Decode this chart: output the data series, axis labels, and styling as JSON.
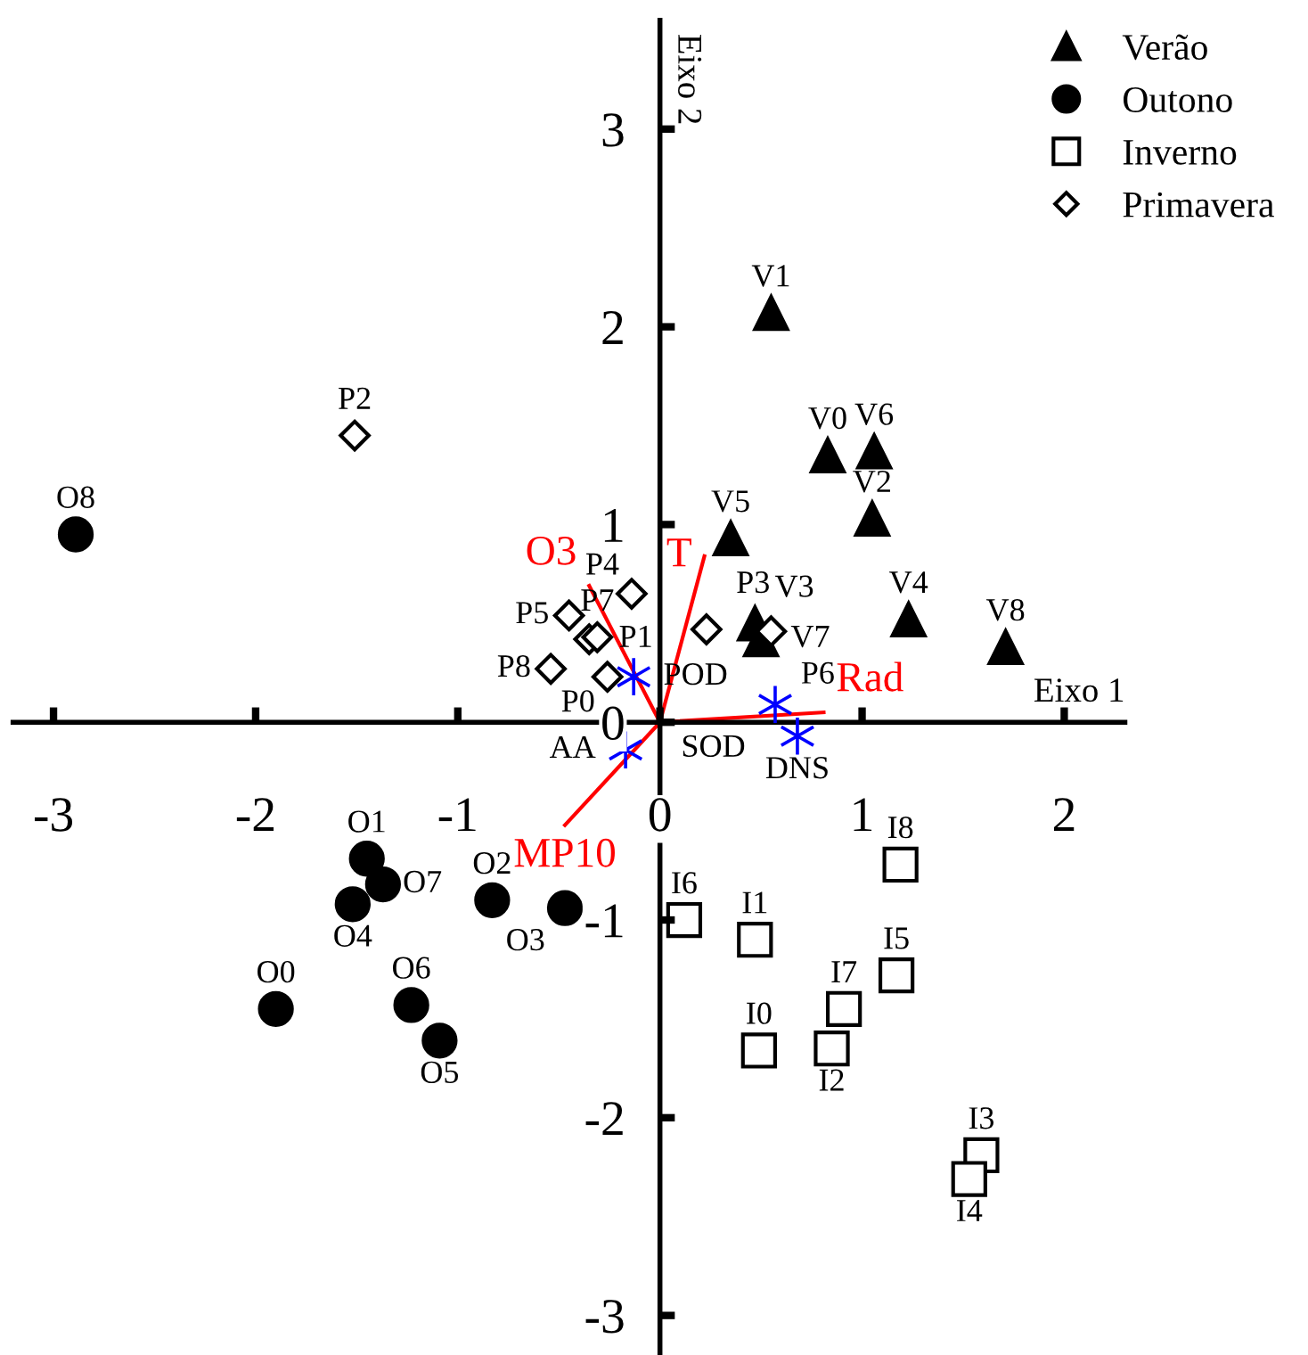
{
  "chart_data": {
    "type": "scatter",
    "xlabel": "Eixo 1",
    "ylabel": "Eixo 2",
    "xlim": [
      -3.2,
      2.3
    ],
    "ylim": [
      -3.2,
      3.55
    ],
    "xticks": [
      -3,
      -2,
      -1,
      0,
      1,
      2
    ],
    "yticks": [
      -3,
      -2,
      -1,
      0,
      1,
      2,
      3
    ],
    "grid": false,
    "legend": "top right",
    "series": [
      {
        "name": "Verão",
        "color": "#000000",
        "marker": "triangle",
        "x": [
          0.83,
          0.55,
          1.05,
          0.47,
          1.23,
          0.35,
          1.06,
          0.5,
          1.71
        ],
        "values": [
          1.35,
          2.07,
          1.03,
          0.5,
          0.52,
          0.93,
          1.37,
          0.42,
          0.38
        ],
        "value_labels": [
          "V0",
          "V1",
          "V2",
          "V3",
          "V4",
          "V5",
          "V6",
          "V7",
          "V8"
        ]
      },
      {
        "name": "Outono",
        "color": "#000000",
        "marker": "circle",
        "x": [
          -1.9,
          -1.45,
          -0.83,
          -0.47,
          -1.52,
          -1.09,
          -1.23,
          -1.37,
          -2.89
        ],
        "values": [
          -1.45,
          -0.69,
          -0.9,
          -0.94,
          -0.92,
          -1.61,
          -1.43,
          -0.82,
          0.95
        ],
        "value_labels": [
          "O0",
          "O1",
          "O2",
          "O3",
          "O4",
          "O5",
          "O6",
          "O7",
          "O8"
        ]
      },
      {
        "name": "Inverno",
        "color": "#000000",
        "marker": "square",
        "x": [
          0.49,
          0.47,
          0.85,
          1.59,
          1.53,
          1.17,
          0.12,
          0.91,
          1.19
        ],
        "values": [
          -1.66,
          -1.1,
          -1.65,
          -2.19,
          -2.31,
          -1.28,
          -1.0,
          -1.45,
          -0.72
        ],
        "value_labels": [
          "I0",
          "I1",
          "I2",
          "I3",
          "I4",
          "I5",
          "I6",
          "I7",
          "I8"
        ]
      },
      {
        "name": "Primavera",
        "color": "#000000",
        "marker": "diamond",
        "x": [
          -0.26,
          -0.35,
          -1.51,
          0.23,
          -0.14,
          -0.45,
          0.55,
          -0.31,
          -0.54
        ],
        "values": [
          0.23,
          0.42,
          1.45,
          0.47,
          0.65,
          0.54,
          0.46,
          0.43,
          0.27
        ],
        "value_labels": [
          "P0",
          "P1",
          "P2",
          "P3",
          "P4",
          "P5",
          "P6",
          "P7",
          "P8"
        ]
      },
      {
        "color": "#0000ff",
        "marker": "cross",
        "x": [
          -0.13,
          -0.17,
          0.57,
          0.68
        ],
        "values": [
          0.23,
          -0.14,
          0.09,
          -0.07
        ],
        "value_labels": [
          "POD",
          "AA",
          "SOD",
          "DNS"
        ]
      },
      {
        "type": "line",
        "name": "T",
        "color": "#ff0000",
        "x": [
          0,
          0.22
        ],
        "values": [
          0,
          0.84
        ]
      },
      {
        "type": "line",
        "name": "O3",
        "color": "#ff0000",
        "x": [
          0,
          -0.35
        ],
        "values": [
          0,
          0.69
        ]
      },
      {
        "type": "line",
        "name": "MP10",
        "color": "#ff0000",
        "x": [
          0,
          -0.47
        ],
        "values": [
          0,
          -0.52
        ]
      },
      {
        "type": "line",
        "name": "Rad",
        "color": "#ff0000",
        "x": [
          0,
          0.81
        ],
        "values": [
          0,
          0.05
        ]
      }
    ]
  }
}
